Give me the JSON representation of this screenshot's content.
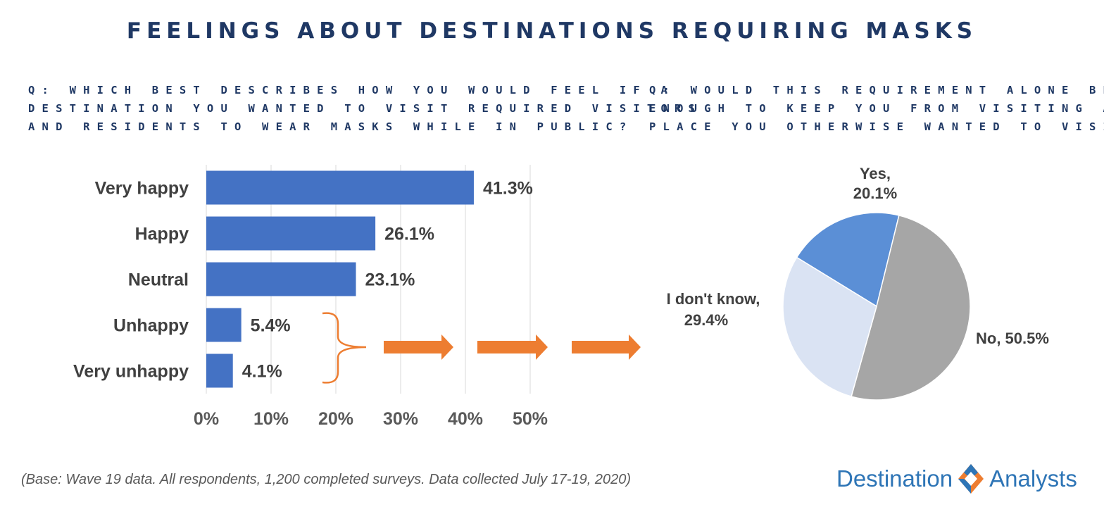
{
  "title": "FEELINGS ABOUT DESTINATIONS REQUIRING MASKS",
  "left_question": [
    "Q: WHICH BEST DESCRIBES HOW YOU WOULD FEEL IF A",
    "DESTINATION YOU WANTED TO VISIT REQUIRED VISITORS",
    "AND RESIDENTS TO WEAR MASKS WHILE IN PUBLIC?"
  ],
  "right_question": [
    "Q: WOULD THIS REQUIREMENT ALONE BE",
    "ENOUGH TO KEEP YOU FROM VISITING A",
    "PLACE YOU OTHERWISE WANTED TO VISIT?"
  ],
  "footnote": "(Base: Wave 19 data. All respondents, 1,200 completed surveys. Data collected July 17-19, 2020)",
  "logo": {
    "word1": "Destination",
    "word2": "Analysts"
  },
  "colors": {
    "title": "#1f3864",
    "bar": "#4472c4",
    "arrow": "#ed7d31",
    "pie_yes": "#5b8fd6",
    "pie_no": "#a6a6a6",
    "pie_dont_know": "#dae3f3"
  },
  "chart_data": [
    {
      "type": "bar",
      "orientation": "horizontal",
      "categories": [
        "Very happy",
        "Happy",
        "Neutral",
        "Unhappy",
        "Very unhappy"
      ],
      "values": [
        41.3,
        26.1,
        23.1,
        5.4,
        4.1
      ],
      "value_labels": [
        "41.3%",
        "26.1%",
        "23.1%",
        "5.4%",
        "4.1%"
      ],
      "xlim": [
        0,
        50
      ],
      "x_ticks": [
        "0%",
        "10%",
        "20%",
        "30%",
        "40%",
        "50%"
      ],
      "grid": "vertical"
    },
    {
      "type": "pie",
      "slices": [
        {
          "label": "Yes,",
          "value_label": "20.1%",
          "value": 20.1,
          "color": "#5b8fd6"
        },
        {
          "label": "No, 50.5%",
          "value": 50.5,
          "color": "#a6a6a6"
        },
        {
          "label": "I don't know,",
          "value_label": "29.4%",
          "value": 29.4,
          "color": "#dae3f3"
        }
      ]
    }
  ]
}
